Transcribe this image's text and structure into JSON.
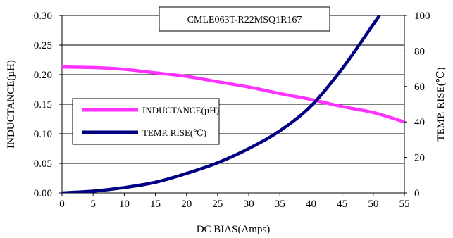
{
  "chart_data": {
    "type": "line",
    "title": "CMLE063T-R22MSQ1R167",
    "xlabel": "DC BIAS(Amps)",
    "ylabel_left": "INDUCTANCE(µH)",
    "ylabel_right": "TEMP. RISE(℃)",
    "xlim": [
      0,
      55
    ],
    "ylim_left": [
      0,
      0.3
    ],
    "ylim_right": [
      0,
      100
    ],
    "x_ticks": [
      "0",
      "5",
      "10",
      "15",
      "20",
      "25",
      "30",
      "35",
      "40",
      "45",
      "50",
      "55"
    ],
    "y_left_ticks": [
      "0.00",
      "0.05",
      "0.10",
      "0.15",
      "0.20",
      "0.25",
      "0.30"
    ],
    "y_right_ticks": [
      "0",
      "20",
      "40",
      "60",
      "80",
      "100"
    ],
    "grid": "horizontal",
    "legend_position": "center-left",
    "series": [
      {
        "name": "INDUCTANCE(µH)",
        "axis": "left",
        "color": "#ff33ff",
        "x": [
          0,
          5,
          10,
          15,
          20,
          25,
          30,
          35,
          40,
          45,
          50,
          55
        ],
        "y": [
          0.213,
          0.212,
          0.209,
          0.203,
          0.197,
          0.188,
          0.179,
          0.168,
          0.158,
          0.146,
          0.136,
          0.12
        ]
      },
      {
        "name": "TEMP. RISE(℃)",
        "axis": "right",
        "color": "#000080",
        "x": [
          0,
          5,
          10,
          15,
          20,
          25,
          30,
          35,
          40,
          45,
          50,
          51
        ],
        "y": [
          0,
          1,
          3,
          6,
          11,
          17,
          25,
          35,
          49,
          70,
          95,
          100
        ]
      }
    ]
  }
}
